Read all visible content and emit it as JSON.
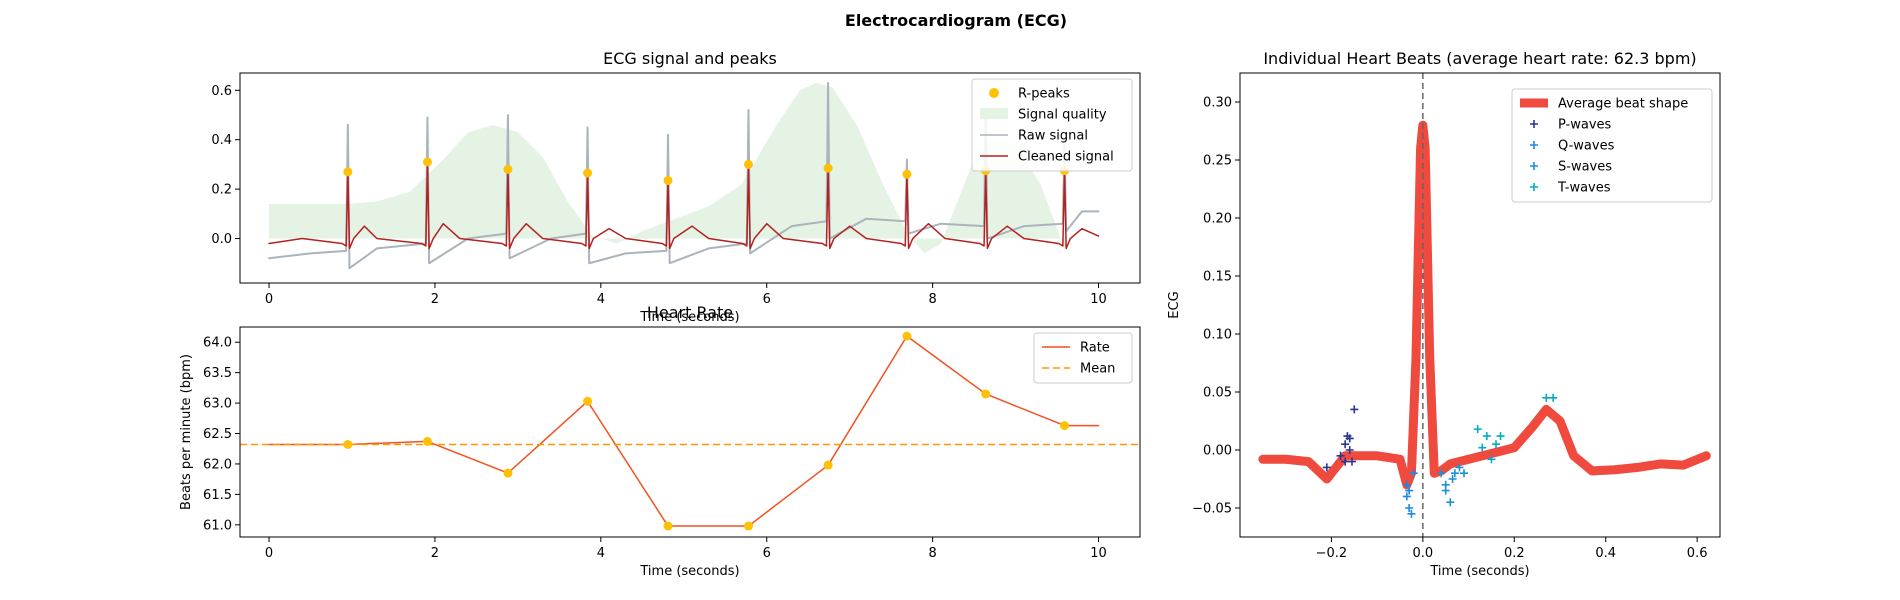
{
  "figure": {
    "title": "Electrocardiogram (ECG)"
  },
  "chart_data": [
    {
      "type": "line",
      "title": "ECG signal and peaks",
      "xlabel": "Time (seconds)",
      "ylabel": "",
      "xlim": [
        -0.35,
        10.5
      ],
      "ylim": [
        -0.18,
        0.67
      ],
      "xticks": [
        0,
        2,
        4,
        6,
        8,
        10
      ],
      "yticks": [
        0.0,
        0.2,
        0.4,
        0.6
      ],
      "ytick_labels": [
        "0.0",
        "0.2",
        "0.4",
        "0.6"
      ],
      "legend_position": "top-right",
      "series": [
        {
          "name": "R-peaks",
          "kind": "scatter",
          "color": "#ffc107",
          "x": [
            0.95,
            1.91,
            2.88,
            3.84,
            4.81,
            5.78,
            6.74,
            7.69,
            8.64,
            9.59
          ],
          "y": [
            0.27,
            0.31,
            0.28,
            0.265,
            0.235,
            0.3,
            0.285,
            0.26,
            0.275,
            0.275
          ]
        },
        {
          "name": "Signal quality",
          "kind": "area",
          "color": "#e4f3e4",
          "x": [
            0,
            0.3,
            0.6,
            0.95,
            1.3,
            1.7,
            2.1,
            2.4,
            2.7,
            3.0,
            3.3,
            3.6,
            3.9,
            4.2,
            4.5,
            4.9,
            5.3,
            5.7,
            6.1,
            6.4,
            6.6,
            6.8,
            7.1,
            7.4,
            7.7,
            7.9,
            8.1,
            8.3,
            8.5,
            8.7,
            9.0,
            9.3,
            9.6
          ],
          "y": [
            0.14,
            0.14,
            0.14,
            0.14,
            0.15,
            0.19,
            0.32,
            0.43,
            0.46,
            0.43,
            0.33,
            0.15,
            0.01,
            -0.02,
            0.03,
            0.08,
            0.13,
            0.22,
            0.45,
            0.6,
            0.63,
            0.61,
            0.45,
            0.22,
            0.02,
            -0.06,
            -0.02,
            0.15,
            0.32,
            0.4,
            0.38,
            0.22,
            -0.05
          ]
        },
        {
          "name": "Raw signal",
          "kind": "line",
          "color": "#aab4bc",
          "x": [
            0,
            0.5,
            0.93,
            0.95,
            0.97,
            1.3,
            1.89,
            1.91,
            1.93,
            2.4,
            2.86,
            2.88,
            2.9,
            3.4,
            3.82,
            3.84,
            3.86,
            4.3,
            4.79,
            4.81,
            4.83,
            5.3,
            5.76,
            5.78,
            5.8,
            6.3,
            6.72,
            6.74,
            6.76,
            7.2,
            7.67,
            7.69,
            7.71,
            8.1,
            8.62,
            8.64,
            8.66,
            9.1,
            9.57,
            9.59,
            9.61,
            9.8,
            10.0
          ],
          "y": [
            -0.08,
            -0.06,
            -0.05,
            0.46,
            -0.12,
            -0.04,
            -0.02,
            0.49,
            -0.1,
            0.0,
            0.02,
            0.5,
            -0.08,
            0.0,
            0.02,
            0.45,
            -0.1,
            -0.06,
            -0.05,
            0.42,
            -0.1,
            -0.04,
            -0.02,
            0.52,
            -0.06,
            0.05,
            0.07,
            0.63,
            0.0,
            0.08,
            0.07,
            0.32,
            0.02,
            0.06,
            0.05,
            0.52,
            0.0,
            0.05,
            0.06,
            0.4,
            0.03,
            0.11,
            0.11
          ]
        },
        {
          "name": "Cleaned signal",
          "kind": "line",
          "color": "#b22222",
          "x": [
            0,
            0.4,
            0.88,
            0.93,
            0.95,
            0.97,
            1.02,
            1.15,
            1.3,
            1.84,
            1.89,
            1.91,
            1.93,
            1.98,
            2.1,
            2.3,
            2.81,
            2.86,
            2.88,
            2.9,
            2.95,
            3.1,
            3.3,
            3.77,
            3.82,
            3.84,
            3.86,
            3.91,
            4.1,
            4.3,
            4.74,
            4.79,
            4.81,
            4.83,
            4.88,
            5.1,
            5.3,
            5.71,
            5.76,
            5.78,
            5.8,
            5.85,
            6.0,
            6.2,
            6.67,
            6.72,
            6.74,
            6.76,
            6.81,
            7.0,
            7.2,
            7.62,
            7.67,
            7.69,
            7.71,
            7.76,
            7.95,
            8.15,
            8.57,
            8.62,
            8.64,
            8.66,
            8.71,
            8.9,
            9.1,
            9.52,
            9.57,
            9.59,
            9.61,
            9.66,
            9.8,
            10.0
          ],
          "y": [
            -0.02,
            0.0,
            -0.02,
            -0.03,
            0.27,
            -0.04,
            0.0,
            0.05,
            0.0,
            -0.02,
            -0.03,
            0.31,
            -0.04,
            0.0,
            0.06,
            0.0,
            -0.02,
            -0.03,
            0.28,
            -0.04,
            0.0,
            0.06,
            0.0,
            -0.02,
            -0.03,
            0.265,
            -0.04,
            0.0,
            0.04,
            0.0,
            -0.02,
            -0.03,
            0.235,
            -0.04,
            0.0,
            0.05,
            0.0,
            -0.02,
            -0.03,
            0.3,
            -0.04,
            0.0,
            0.06,
            0.0,
            -0.02,
            -0.03,
            0.285,
            -0.04,
            0.0,
            0.05,
            0.0,
            -0.02,
            -0.03,
            0.26,
            -0.04,
            0.0,
            0.06,
            0.0,
            -0.02,
            -0.03,
            0.275,
            -0.04,
            0.0,
            0.05,
            0.0,
            -0.02,
            -0.03,
            0.275,
            -0.04,
            0.0,
            0.04,
            0.01
          ]
        }
      ]
    },
    {
      "type": "line",
      "title": "Heart Rate",
      "xlabel": "Time (seconds)",
      "ylabel": "Beats per minute (bpm)",
      "xlim": [
        -0.35,
        10.5
      ],
      "ylim": [
        60.8,
        64.25
      ],
      "xticks": [
        0,
        2,
        4,
        6,
        8,
        10
      ],
      "yticks": [
        61.0,
        61.5,
        62.0,
        62.5,
        63.0,
        63.5,
        64.0
      ],
      "ytick_labels": [
        "61.0",
        "61.5",
        "62.0",
        "62.5",
        "63.0",
        "63.5",
        "64.0"
      ],
      "legend_position": "top-right",
      "series": [
        {
          "name": "Rate",
          "kind": "line",
          "color": "#f4511e",
          "x": [
            0,
            0.95,
            1.91,
            2.88,
            3.84,
            4.81,
            5.78,
            6.74,
            7.69,
            8.64,
            9.59,
            10.0
          ],
          "y": [
            62.32,
            62.32,
            62.37,
            61.85,
            63.03,
            60.98,
            60.98,
            61.98,
            64.1,
            63.15,
            62.63,
            62.63
          ]
        },
        {
          "name": "Mean",
          "kind": "hline",
          "color": "#ff9800",
          "y": 62.32
        },
        {
          "name": "",
          "kind": "scatter",
          "color": "#ffc107",
          "x": [
            0.95,
            1.91,
            2.88,
            3.84,
            4.81,
            5.78,
            6.74,
            7.69,
            8.64,
            9.59
          ],
          "y": [
            62.32,
            62.37,
            61.85,
            63.03,
            60.98,
            60.98,
            61.98,
            64.1,
            63.15,
            62.63
          ]
        }
      ]
    },
    {
      "type": "line",
      "title": "Individual Heart Beats (average heart rate: 62.3 bpm)",
      "xlabel": "Time (seconds)",
      "ylabel": "ECG",
      "xlim": [
        -0.4,
        0.65
      ],
      "ylim": [
        -0.075,
        0.325
      ],
      "xticks": [
        -0.2,
        0.0,
        0.2,
        0.4,
        0.6
      ],
      "xtick_labels": [
        "−0.2",
        "0.0",
        "0.2",
        "0.4",
        "0.6"
      ],
      "yticks": [
        -0.05,
        0.0,
        0.05,
        0.1,
        0.15,
        0.2,
        0.25,
        0.3
      ],
      "ytick_labels": [
        "−0.05",
        "0.00",
        "0.05",
        "0.10",
        "0.15",
        "0.20",
        "0.25",
        "0.30"
      ],
      "vline_x": 0.0,
      "legend_position": "top-right",
      "series": [
        {
          "name": "Average beat shape",
          "kind": "line",
          "color": "#f04a3e",
          "x": [
            -0.35,
            -0.3,
            -0.25,
            -0.21,
            -0.19,
            -0.17,
            -0.15,
            -0.1,
            -0.05,
            -0.035,
            -0.025,
            -0.015,
            -0.005,
            0.0,
            0.005,
            0.015,
            0.025,
            0.04,
            0.06,
            0.1,
            0.15,
            0.2,
            0.24,
            0.27,
            0.3,
            0.33,
            0.37,
            0.42,
            0.47,
            0.52,
            0.57,
            0.62
          ],
          "y": [
            -0.008,
            -0.008,
            -0.01,
            -0.025,
            -0.015,
            -0.005,
            -0.005,
            -0.005,
            -0.008,
            -0.03,
            -0.02,
            0.08,
            0.26,
            0.28,
            0.26,
            0.08,
            -0.02,
            -0.018,
            -0.012,
            -0.008,
            -0.003,
            0.002,
            0.02,
            0.035,
            0.025,
            -0.005,
            -0.018,
            -0.017,
            -0.015,
            -0.012,
            -0.013,
            -0.005
          ]
        },
        {
          "name": "P-waves",
          "kind": "scatter",
          "color": "#283593",
          "x": [
            -0.21,
            -0.18,
            -0.17,
            -0.165,
            -0.16,
            -0.155,
            -0.15,
            -0.17,
            -0.16
          ],
          "y": [
            -0.015,
            -0.005,
            0.005,
            0.012,
            0.0,
            -0.01,
            0.035,
            -0.01,
            0.01
          ]
        },
        {
          "name": "Q-waves",
          "kind": "scatter",
          "color": "#1e88e5",
          "x": [
            -0.035,
            -0.03,
            -0.03,
            -0.025,
            -0.02,
            -0.035
          ],
          "y": [
            -0.03,
            -0.035,
            -0.05,
            -0.055,
            -0.02,
            -0.04
          ]
        },
        {
          "name": "S-waves",
          "kind": "scatter",
          "color": "#1e90d6",
          "x": [
            0.04,
            0.05,
            0.06,
            0.07,
            0.08,
            0.09,
            0.05,
            0.065
          ],
          "y": [
            -0.02,
            -0.035,
            -0.045,
            -0.02,
            -0.015,
            -0.02,
            -0.03,
            -0.025
          ]
        },
        {
          "name": "T-waves",
          "kind": "scatter",
          "color": "#00acc1",
          "x": [
            0.12,
            0.14,
            0.16,
            0.17,
            0.27,
            0.285,
            0.15,
            0.13
          ],
          "y": [
            0.018,
            0.012,
            0.005,
            0.012,
            0.045,
            0.045,
            -0.008,
            0.002
          ]
        }
      ]
    }
  ]
}
